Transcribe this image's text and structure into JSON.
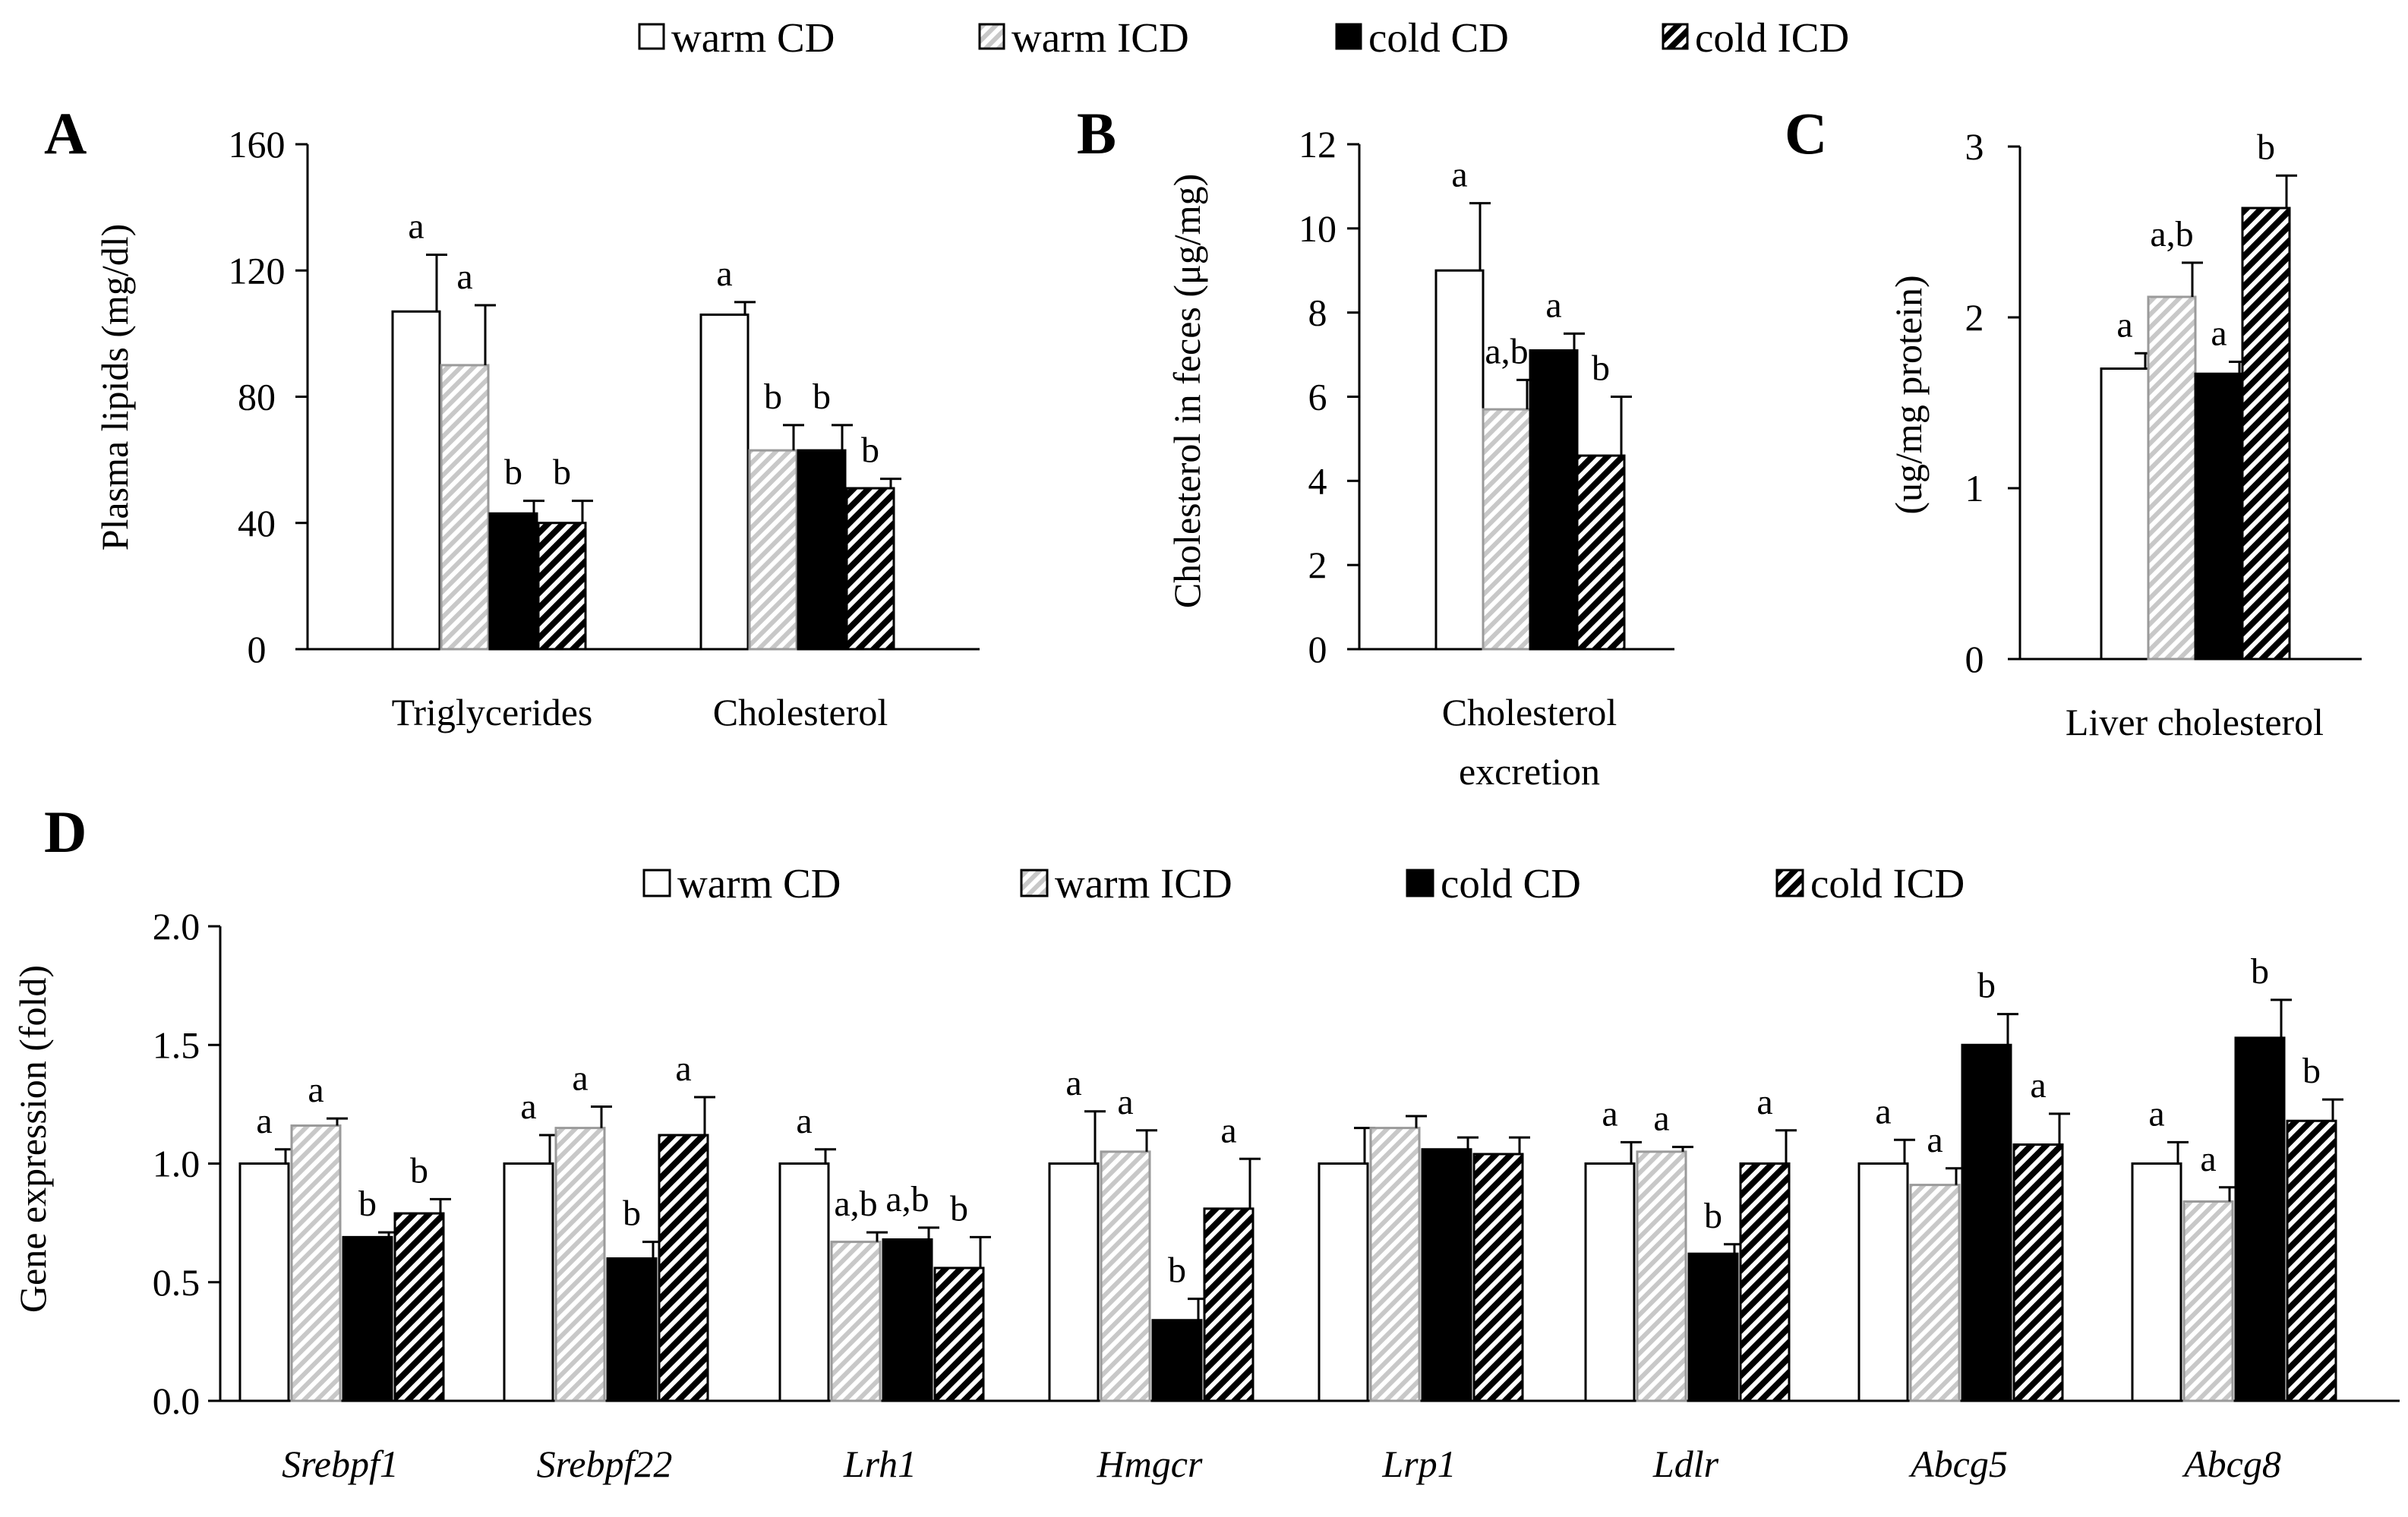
{
  "series_names": [
    "warm CD",
    "warm ICD",
    "cold CD",
    "cold ICD"
  ],
  "colors": {
    "warm_cd": "#ffffff",
    "warm_icd": "#d4d4d4",
    "cold_cd": "#000000",
    "cold_icd": "#000000",
    "axis": "#000000"
  },
  "chart_data": [
    {
      "panel": "A",
      "type": "bar",
      "ylabel": "Plasma lipids (mg/dl)",
      "ylim": [
        0,
        160
      ],
      "yticks": [
        "0",
        "40",
        "80",
        "120",
        "160"
      ],
      "categories": [
        "Triglycerides",
        "Cholesterol"
      ],
      "series": [
        {
          "name": "warm CD",
          "values": [
            107,
            106
          ],
          "errors": [
            18,
            4
          ],
          "labels": [
            "a",
            "a"
          ]
        },
        {
          "name": "warm ICD",
          "values": [
            90,
            63
          ],
          "errors": [
            19,
            8
          ],
          "labels": [
            "a",
            "b"
          ]
        },
        {
          "name": "cold CD",
          "values": [
            43,
            63
          ],
          "errors": [
            4,
            8
          ],
          "labels": [
            "b",
            "b"
          ]
        },
        {
          "name": "cold ICD",
          "values": [
            40,
            51
          ],
          "errors": [
            7,
            3
          ],
          "labels": [
            "b",
            "b"
          ]
        }
      ]
    },
    {
      "panel": "B",
      "type": "bar",
      "ylabel": "Cholesterol in feces (μg/mg)",
      "ylim": [
        0,
        12
      ],
      "yticks": [
        "0",
        "2",
        "4",
        "6",
        "8",
        "10",
        "12"
      ],
      "categories": [
        "Cholesterol excretion"
      ],
      "category_lines": [
        [
          "Cholesterol",
          "excretion"
        ]
      ],
      "series": [
        {
          "name": "warm CD",
          "values": [
            9.0
          ],
          "errors": [
            1.6
          ],
          "labels": [
            "a"
          ]
        },
        {
          "name": "warm ICD",
          "values": [
            5.7
          ],
          "errors": [
            0.7
          ],
          "labels": [
            "a,b"
          ]
        },
        {
          "name": "cold CD",
          "values": [
            7.1
          ],
          "errors": [
            0.4
          ],
          "labels": [
            "a"
          ]
        },
        {
          "name": "cold ICD",
          "values": [
            4.6
          ],
          "errors": [
            1.4
          ],
          "labels": [
            "b"
          ]
        }
      ]
    },
    {
      "panel": "C",
      "type": "bar",
      "ylabel": "(ug/mg protein)",
      "ylim": [
        0,
        3
      ],
      "yticks": [
        "0",
        "1",
        "2",
        "3"
      ],
      "categories": [
        "Liver cholesterol"
      ],
      "series": [
        {
          "name": "warm CD",
          "values": [
            1.7
          ],
          "errors": [
            0.09
          ],
          "labels": [
            "a"
          ]
        },
        {
          "name": "warm ICD",
          "values": [
            2.12
          ],
          "errors": [
            0.2
          ],
          "labels": [
            "a,b"
          ]
        },
        {
          "name": "cold CD",
          "values": [
            1.67
          ],
          "errors": [
            0.07
          ],
          "labels": [
            "a"
          ]
        },
        {
          "name": "cold ICD",
          "values": [
            2.64
          ],
          "errors": [
            0.19
          ],
          "labels": [
            "b"
          ]
        }
      ]
    },
    {
      "panel": "D",
      "type": "bar",
      "ylabel": "Gene expression (fold)",
      "ylim": [
        0,
        2
      ],
      "yticks": [
        "0.0",
        "0.5",
        "1.0",
        "1.5",
        "2.0"
      ],
      "categories": [
        "Srebpf1",
        "Srebpf22",
        "Lrh1",
        "Hmgcr",
        "Lrp1",
        "Ldlr",
        "Abcg5",
        "Abcg8"
      ],
      "series": [
        {
          "name": "warm CD",
          "values": [
            1.0,
            1.0,
            1.0,
            1.0,
            1.0,
            1.0,
            1.0,
            1.0
          ],
          "errors": [
            0.06,
            0.12,
            0.06,
            0.22,
            0.15,
            0.09,
            0.1,
            0.09
          ],
          "labels": [
            "a",
            "a",
            "a",
            "a",
            "",
            "a",
            "a",
            "a"
          ]
        },
        {
          "name": "warm ICD",
          "values": [
            1.16,
            1.15,
            0.67,
            1.05,
            1.15,
            1.05,
            0.91,
            0.84
          ],
          "errors": [
            0.03,
            0.09,
            0.04,
            0.09,
            0.05,
            0.02,
            0.07,
            0.06
          ],
          "labels": [
            "a",
            "a",
            "a,b",
            "a",
            "",
            "a",
            "a",
            "a"
          ]
        },
        {
          "name": "cold CD",
          "values": [
            0.69,
            0.6,
            0.68,
            0.34,
            1.06,
            0.62,
            1.5,
            1.53
          ],
          "errors": [
            0.02,
            0.07,
            0.05,
            0.09,
            0.05,
            0.04,
            0.13,
            0.16
          ],
          "labels": [
            "b",
            "b",
            "a,b",
            "b",
            "",
            "b",
            "b",
            "b"
          ]
        },
        {
          "name": "cold ICD",
          "values": [
            0.79,
            1.12,
            0.56,
            0.81,
            1.04,
            1.0,
            1.08,
            1.18
          ],
          "errors": [
            0.06,
            0.16,
            0.13,
            0.21,
            0.07,
            0.14,
            0.13,
            0.09
          ],
          "labels": [
            "b",
            "a",
            "b",
            "a",
            "",
            "a",
            "a",
            "b"
          ]
        }
      ]
    }
  ]
}
